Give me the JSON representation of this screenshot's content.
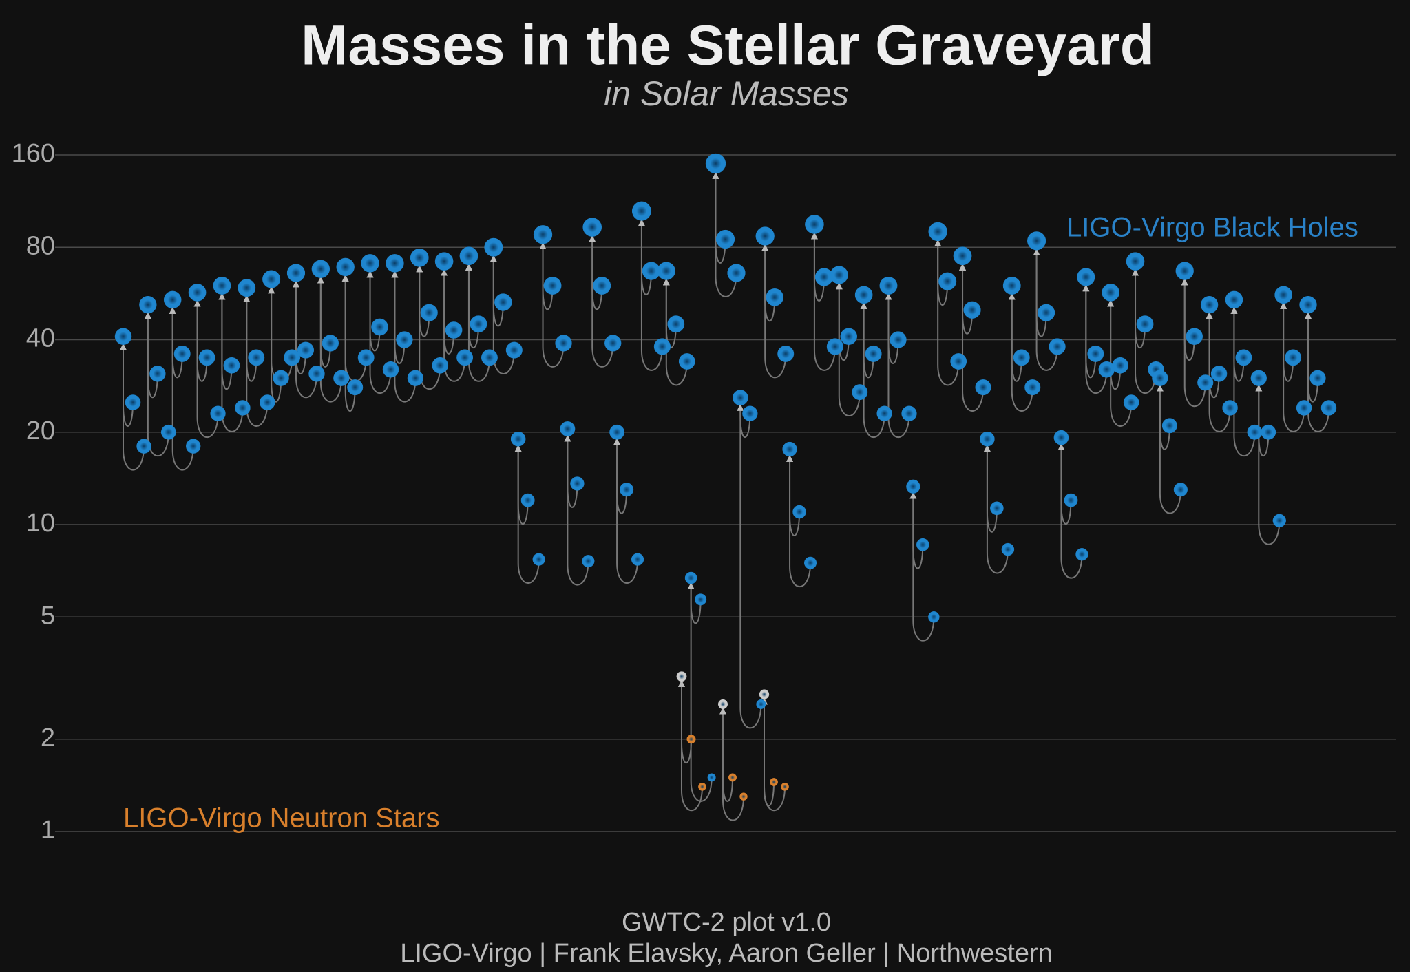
{
  "chart_data": {
    "type": "scatter",
    "title": "Masses in the Stellar Graveyard",
    "subtitle": "in Solar Masses",
    "yscale": "log",
    "grid": true,
    "ylim": [
      1,
      160
    ],
    "yticks": [
      1,
      2,
      5,
      10,
      20,
      40,
      80,
      160
    ],
    "series": [
      {
        "name": "LIGO-Virgo Black Holes",
        "color": "#1f86cf",
        "events": [
          [
            25,
            18,
            41
          ],
          [
            31,
            20,
            52
          ],
          [
            36,
            18,
            54
          ],
          [
            35,
            23,
            57
          ],
          [
            33,
            24,
            60
          ],
          [
            35,
            25,
            59
          ],
          [
            30,
            35,
            63
          ],
          [
            37,
            31,
            66
          ],
          [
            39,
            30,
            68
          ],
          [
            28,
            35,
            69
          ],
          [
            44,
            32,
            71
          ],
          [
            40,
            30,
            71
          ],
          [
            49,
            33,
            74
          ],
          [
            43,
            35,
            72
          ],
          [
            45,
            35,
            75
          ],
          [
            53,
            37,
            80
          ],
          [
            12,
            7.7,
            19
          ],
          [
            60,
            39,
            88
          ],
          [
            13.6,
            7.6,
            20.5
          ],
          [
            60,
            39,
            93
          ],
          [
            13,
            7.7,
            20
          ],
          [
            67,
            38,
            105
          ],
          [
            45,
            34,
            67
          ],
          [
            5.7,
            1.5,
            6.7
          ],
          [
            85,
            66,
            150
          ],
          [
            23,
            2.6,
            25.9
          ],
          [
            55,
            36,
            87
          ],
          [
            11,
            7.5,
            17.6
          ],
          [
            64,
            38,
            95
          ],
          [
            41,
            27,
            65
          ],
          [
            36,
            23,
            56
          ],
          [
            40,
            23,
            60
          ],
          [
            8.6,
            5,
            13.3
          ],
          [
            62,
            34,
            90
          ],
          [
            50,
            28,
            75
          ],
          [
            11.3,
            8.3,
            19
          ],
          [
            35,
            28,
            60
          ],
          [
            49,
            38,
            84
          ],
          [
            12,
            8,
            19.2
          ],
          [
            36,
            32,
            64
          ],
          [
            33,
            25,
            57
          ],
          [
            45,
            32,
            72
          ],
          [
            21,
            13,
            30
          ],
          [
            41,
            29,
            67
          ],
          [
            31,
            24,
            52
          ],
          [
            35,
            20,
            54
          ],
          [
            20,
            10.3,
            30
          ],
          [
            35,
            24,
            56
          ],
          [
            30,
            24,
            52
          ]
        ]
      },
      {
        "name": "LIGO-Virgo Neutron Stars",
        "color": "#d9802c",
        "remnant_color": "#cccccc",
        "events": [
          [
            2.0,
            1.4,
            3.2
          ],
          [
            1.5,
            1.3,
            2.6
          ],
          [
            1.45,
            1.4,
            2.8
          ]
        ]
      }
    ],
    "credits": [
      "GWTC-2 plot v1.0",
      "LIGO-Virgo | Frank Elavsky, Aaron Geller | Northwestern"
    ]
  }
}
